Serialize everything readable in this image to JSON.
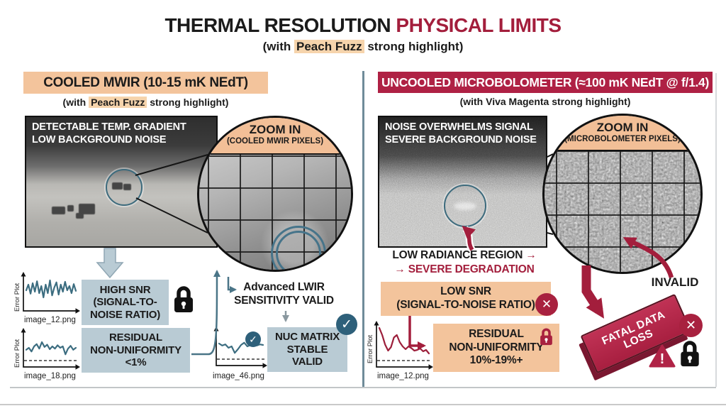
{
  "title": {
    "black": "THERMAL RESOLUTION",
    "red": "PHYSICAL LIMITS",
    "sub_pre": "(with ",
    "sub_hl": "Peach Fuzz",
    "sub_post": " strong highlight)"
  },
  "left": {
    "header": "COOLED MWIR (10-15 mK NEdT)",
    "sub_pre": "(with ",
    "sub_hl": "Peach Fuzz",
    "sub_post": " strong highlight)",
    "caption1": "DETECTABLE TEMP. GRADIENT",
    "caption2": "LOW BACKGROUND NOISE",
    "zoom_title": "ZOOM IN",
    "zoom_sub": "(COOLED MWIR PIXELS)",
    "advanced1": "Advanced LWIR",
    "advanced2": "SENSITIVITY VALID",
    "snr1": "HIGH SNR",
    "snr2": "(SIGNAL-TO-",
    "snr3": "NOISE RATIO)",
    "res1": "RESIDUAL",
    "res2": "NON-UNIFORMITY",
    "res3": "<1%",
    "nuc1": "NUC MATRIX",
    "nuc2": "STABLE",
    "nuc3": "VALID",
    "plot1": {
      "ylabel": "Error Plot",
      "xlabel": "image_12.png"
    },
    "plot2": {
      "ylabel": "Error Plot",
      "xlabel": "image_18.png"
    },
    "plot3": {
      "xlabel": "image_46.png"
    }
  },
  "right": {
    "header": "UNCOOLED MICROBOLOMETER (≈100 mK NEdT @ f/1.4)",
    "sub_pre": "(with ",
    "sub_bold": "Viva Magenta",
    "sub_post": " strong highlight)",
    "caption1": "NOISE OVERWHELMS SIGNAL",
    "caption2": "SEVERE BACKGROUND NOISE",
    "zoom_title": "ZOOM IN",
    "zoom_sub": "(MICROBOLOMETER PIXELS)",
    "radiance1": "LOW RADIANCE REGION",
    "arrow": "→",
    "radiance2": "SEVERE DEGRADATION",
    "lowsnr1": "LOW SNR",
    "lowsnr2": "(SIGNAL-TO-NOISE RATIO)",
    "res1": "RESIDUAL",
    "res2": "NON-UNIFORMITY",
    "res3": "10%-19%+",
    "invalid": "INVALID",
    "fatal1": "FATAL DATA",
    "fatal2": "LOSS",
    "plot": {
      "ylabel": "Error Plot",
      "xlabel": "image_12.png"
    }
  },
  "glyphs": {
    "check": "✓",
    "cross": "✕",
    "warn": "!"
  },
  "colors": {
    "peach": "#F3C49C",
    "magenta": "#AF2144",
    "bluegray": "#B9CBD4",
    "teal": "#3D6B7D",
    "red_text": "#A31E3C"
  },
  "sparklines": {
    "p1": [
      0.5,
      0.3,
      0.62,
      0.25,
      0.55,
      0.18,
      0.6,
      0.35,
      0.75,
      0.3,
      0.6,
      0.15,
      0.68,
      0.4,
      0.22,
      0.65,
      0.3,
      0.55,
      0.2,
      0.5,
      0.35,
      0.6,
      0.28,
      0.52
    ],
    "p2": [
      0.62,
      0.55,
      0.68,
      0.5,
      0.42,
      0.58,
      0.35,
      0.52,
      0.44,
      0.6,
      0.5,
      0.58,
      0.46,
      0.55,
      0.5,
      0.78,
      0.58,
      0.48,
      0.62,
      0.55
    ],
    "p3": [
      0.45,
      0.52,
      0.48,
      0.6,
      0.55,
      0.78,
      0.65,
      0.5,
      0.42,
      0.55,
      0.5,
      0.46,
      0.52,
      0.48,
      0.5
    ],
    "pr": [
      0.08,
      0.28,
      0.55,
      0.72,
      0.62,
      0.35,
      0.28,
      0.48,
      0.6,
      0.68,
      0.6,
      0.65,
      0.72,
      0.7,
      0.66,
      0.74,
      0.7,
      0.8
    ]
  }
}
